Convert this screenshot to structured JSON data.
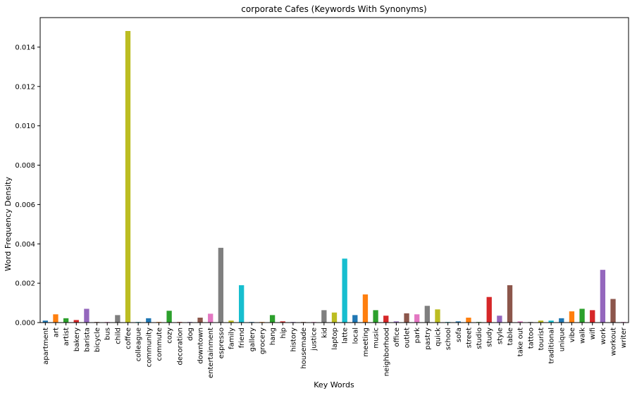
{
  "chart_data": {
    "type": "bar",
    "title": "corporate Cafes (Keywords With Synonyms)",
    "xlabel": "Key Words",
    "ylabel": "Word Frequency Density",
    "ylim": [
      0,
      0.0155
    ],
    "yticks": [
      "0.000",
      "0.002",
      "0.004",
      "0.006",
      "0.008",
      "0.010",
      "0.012",
      "0.014"
    ],
    "grid": false,
    "categories": [
      "apartment",
      "art",
      "artist",
      "bakery",
      "barista",
      "bicycle",
      "bus",
      "child",
      "coffee",
      "colleague",
      "community",
      "commute",
      "cozy",
      "decoration",
      "dog",
      "downtown",
      "entertainment",
      "espresso",
      "family",
      "friend",
      "gallery",
      "grocery",
      "hang",
      "hip",
      "history",
      "housemade",
      "justice",
      "kid",
      "laptop",
      "latte",
      "local",
      "meeting",
      "music",
      "neighborhood",
      "office",
      "outlet",
      "park",
      "pastry",
      "quick",
      "school",
      "sofa",
      "street",
      "studio",
      "study",
      "style",
      "table",
      "take out",
      "tattoo",
      "tourist",
      "traditional",
      "unique",
      "vibe",
      "walk",
      "wifi",
      "work",
      "workout",
      "writer"
    ],
    "values": [
      0.0001,
      0.00042,
      0.00022,
      0.00013,
      0.0007,
      3e-05,
      3e-05,
      0.00038,
      0.01482,
      3e-05,
      0.00022,
      3e-05,
      0.0006,
      3e-05,
      3e-05,
      0.00025,
      0.00045,
      0.0038,
      0.0001,
      0.0019,
      3e-05,
      3e-05,
      0.00038,
      6e-05,
      3e-05,
      3e-05,
      3e-05,
      0.00063,
      0.00051,
      0.00325,
      0.00038,
      0.00143,
      0.00063,
      0.00035,
      6e-05,
      0.00047,
      0.00042,
      0.00085,
      0.00067,
      3e-05,
      6e-05,
      0.00025,
      3e-05,
      0.0013,
      0.00035,
      0.0019,
      6e-05,
      3e-05,
      0.0001,
      0.0001,
      0.00022,
      0.00057,
      0.0007,
      0.00063,
      0.00268,
      0.0012,
      3e-05
    ],
    "palette": [
      "#1f77b4",
      "#ff7f0e",
      "#2ca02c",
      "#d62728",
      "#9467bd",
      "#8c564b",
      "#e377c2",
      "#7f7f7f",
      "#bcbd22",
      "#17becf"
    ]
  }
}
